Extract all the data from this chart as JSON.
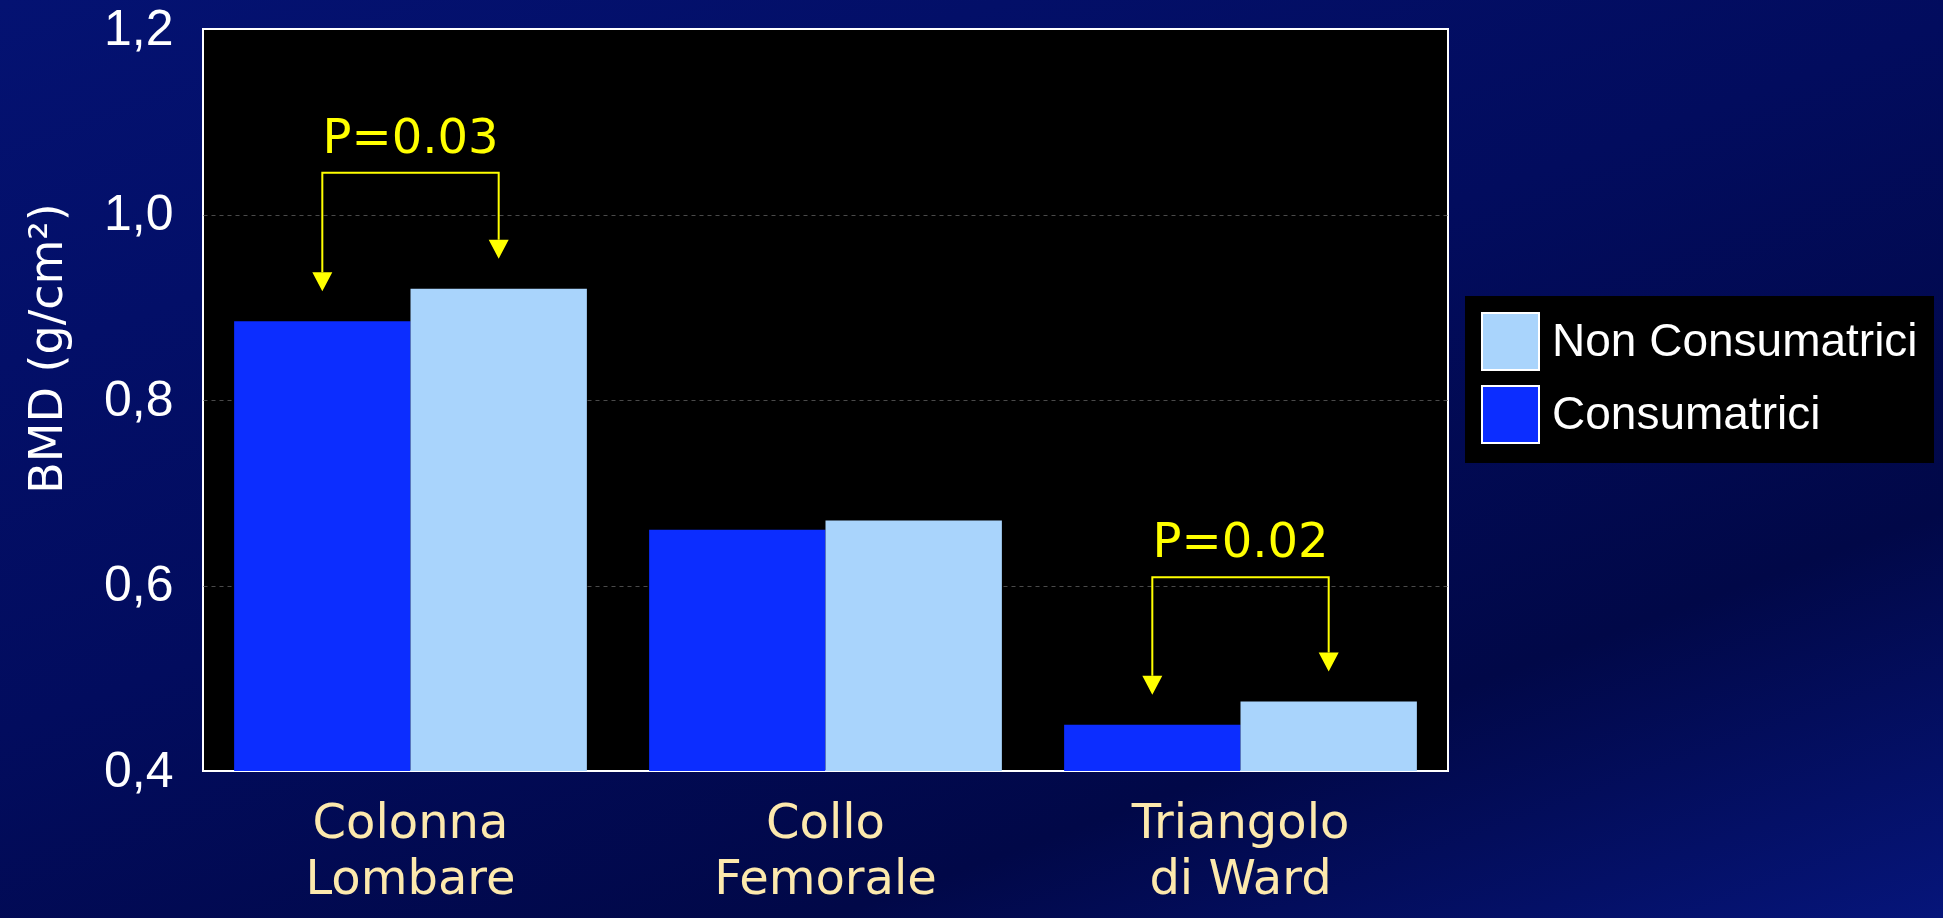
{
  "chart_data": {
    "type": "bar",
    "ylabel": "BMD (g/cm²)",
    "categories": [
      "Colonna Lombare",
      "Collo Femorale",
      "Triangolo di Ward"
    ],
    "series": [
      {
        "name": "Consumatrici",
        "color": "#0c2dff",
        "values": [
          0.885,
          0.66,
          0.45
        ]
      },
      {
        "name": "Non Consumatrici",
        "color": "#a9d4fc",
        "values": [
          0.92,
          0.67,
          0.475
        ]
      }
    ],
    "ylim": [
      0.4,
      1.2
    ],
    "yticks": [
      {
        "value": 0.4,
        "label": "0,4"
      },
      {
        "value": 0.6,
        "label": "0,6"
      },
      {
        "value": 0.8,
        "label": "0,8"
      },
      {
        "value": 1.0,
        "label": "1,0"
      },
      {
        "value": 1.2,
        "label": "1,2"
      }
    ],
    "grid": "y",
    "legend": "right",
    "annotations": [
      "P=0.03",
      "P=0.02"
    ]
  }
}
